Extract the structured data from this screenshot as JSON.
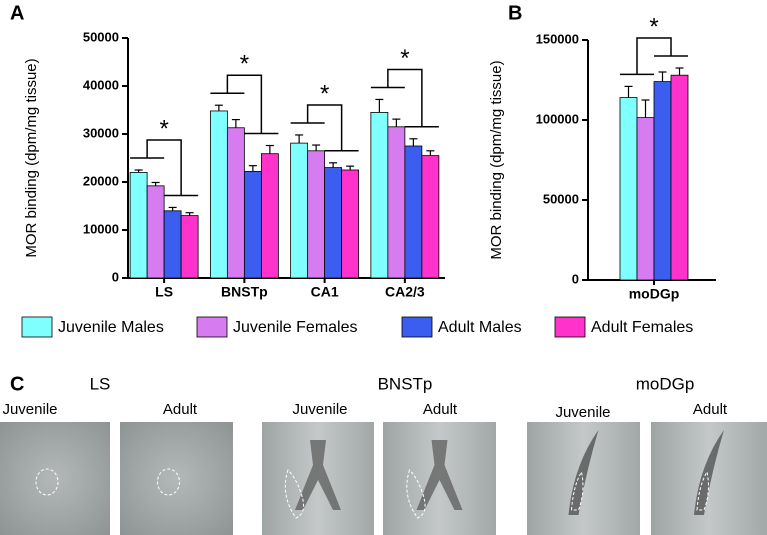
{
  "chart_data": [
    {
      "type": "bar",
      "label": "A",
      "ylabel": "MOR binding (dpm/mg tissue)",
      "categories": [
        "LS",
        "BNSTp",
        "CA1",
        "CA2/3"
      ],
      "ylim": [
        0,
        50000
      ],
      "yticks": [
        0,
        10000,
        20000,
        30000,
        40000,
        50000
      ],
      "annotations": [
        "*",
        "*",
        "*",
        "*"
      ],
      "series": [
        {
          "name": "Juvenile Males",
          "color": "#80ffff",
          "values": [
            22000,
            34800,
            28100,
            34500
          ],
          "errors": [
            500,
            1200,
            1700,
            2700
          ]
        },
        {
          "name": "Juvenile Females",
          "color": "#d67cf0",
          "values": [
            19200,
            31300,
            26500,
            31500
          ],
          "errors": [
            700,
            1700,
            1200,
            1600
          ]
        },
        {
          "name": "Adult Males",
          "color": "#3b5ef0",
          "values": [
            14000,
            22200,
            23000,
            27500
          ],
          "errors": [
            700,
            1200,
            1000,
            1500
          ]
        },
        {
          "name": "Adult Females",
          "color": "#ff33cc",
          "values": [
            13000,
            25900,
            22500,
            25500
          ],
          "errors": [
            600,
            1700,
            800,
            1000
          ]
        }
      ]
    },
    {
      "type": "bar",
      "label": "B",
      "ylabel": "MOR binding (dpm/mg tissue)",
      "categories": [
        "moDGp"
      ],
      "ylim": [
        0,
        150000
      ],
      "yticks": [
        0,
        50000,
        100000,
        150000
      ],
      "annotations": [
        "*"
      ],
      "series": [
        {
          "color": "#80ffff",
          "values": [
            114000
          ],
          "errors": [
            7000
          ]
        },
        {
          "color": "#d67cf0",
          "values": [
            101500
          ],
          "errors": [
            11000
          ]
        },
        {
          "color": "#3b5ef0",
          "values": [
            124000
          ],
          "errors": [
            6000
          ]
        },
        {
          "color": "#ff33cc",
          "values": [
            128000
          ],
          "errors": [
            4500
          ]
        }
      ]
    }
  ],
  "panel_c": {
    "label": "C",
    "groups": [
      {
        "title": "LS",
        "images": [
          "Juvenile",
          "Adult"
        ]
      },
      {
        "title": "BNSTp",
        "images": [
          "Juvenile",
          "Adult"
        ]
      },
      {
        "title": "moDGp",
        "images": [
          "Juvenile",
          "Adult"
        ]
      }
    ]
  }
}
